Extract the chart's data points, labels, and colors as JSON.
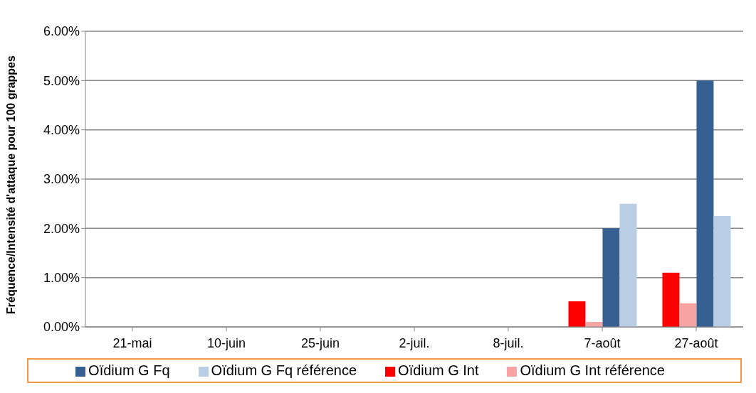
{
  "chart_data": {
    "type": "bar",
    "ylabel": "Fréquence/Intensité d'attaque pour 100 grappes",
    "categories": [
      "21-mai",
      "10-juin",
      "25-juin",
      "2-juil.",
      "8-juil.",
      "7-août",
      "27-août"
    ],
    "series": [
      {
        "name": "Oïdium G Int",
        "color": "#ff0000",
        "values": [
          0,
          0,
          0,
          0,
          0,
          0.52,
          1.1
        ]
      },
      {
        "name": "Oïdium G Int référence",
        "color": "#f7a3a3",
        "values": [
          0,
          0,
          0,
          0,
          0,
          0.1,
          0.48
        ]
      },
      {
        "name": "Oïdium G Fq",
        "color": "#376092",
        "values": [
          0,
          0,
          0,
          0,
          0,
          2.0,
          5.0
        ]
      },
      {
        "name": "Oïdium G Fq référence",
        "color": "#b9cde5",
        "values": [
          0,
          0,
          0,
          0,
          0,
          2.5,
          2.25
        ]
      }
    ],
    "ylim": [
      0,
      6
    ],
    "yticks": [
      {
        "value": 0,
        "label": "0.00%"
      },
      {
        "value": 1,
        "label": "1.00%"
      },
      {
        "value": 2,
        "label": "2.00%"
      },
      {
        "value": 3,
        "label": "3.00%"
      },
      {
        "value": 4,
        "label": "4.00%"
      },
      {
        "value": 5,
        "label": "5.00%"
      },
      {
        "value": 6,
        "label": "6.00%"
      }
    ],
    "grid": "y",
    "legend": "bottom"
  }
}
